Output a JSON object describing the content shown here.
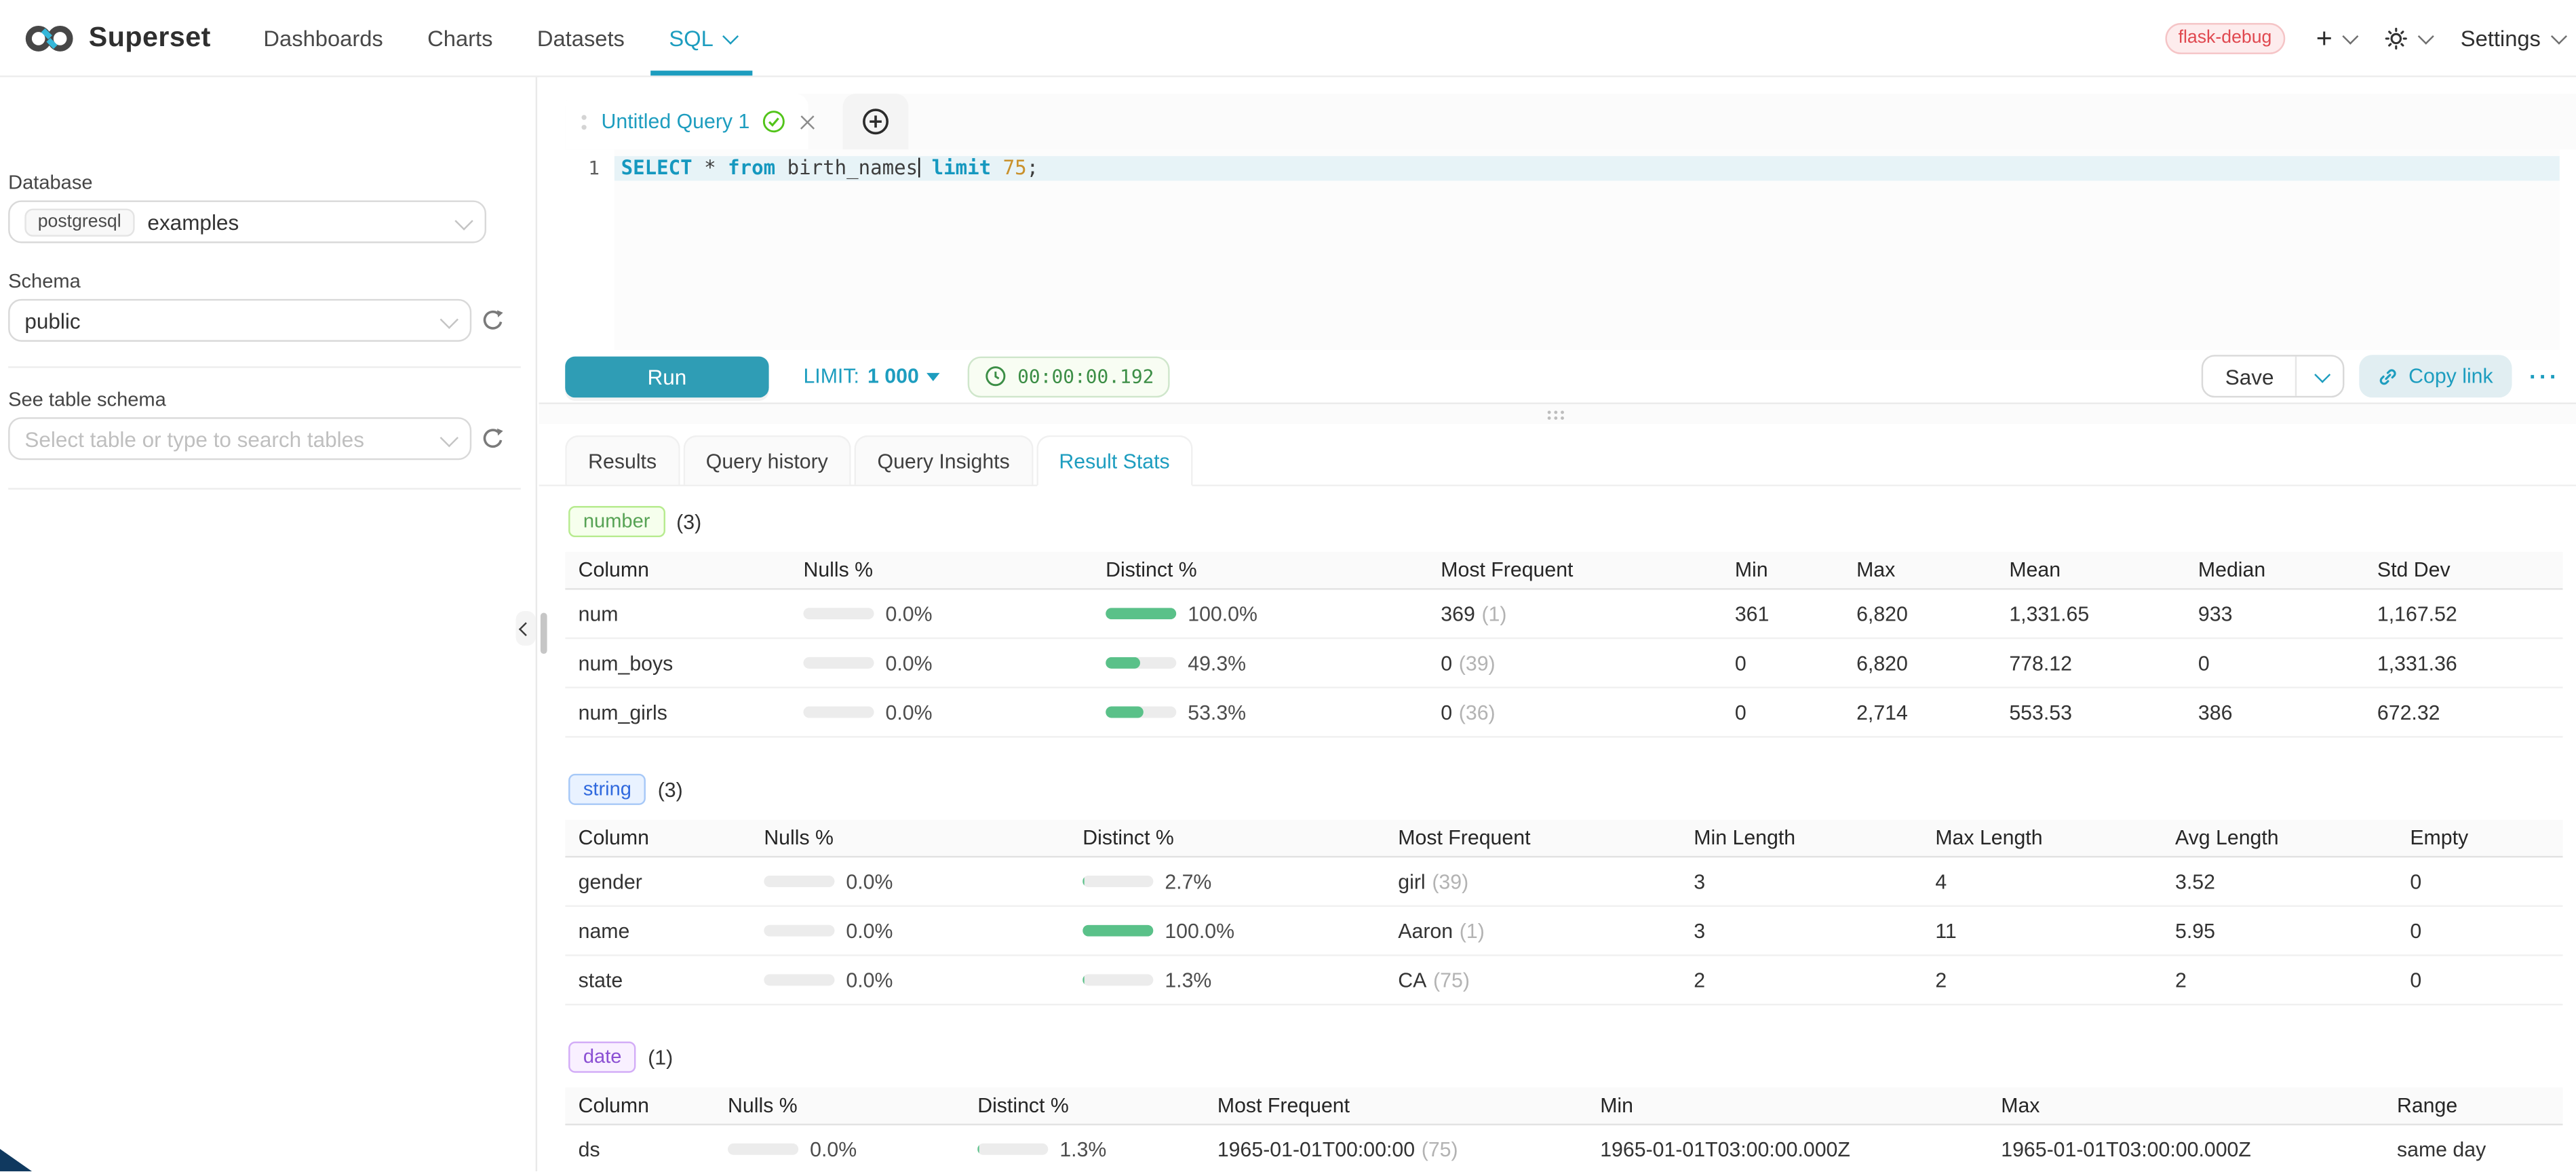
{
  "navbar": {
    "brand": "Superset",
    "items": [
      {
        "label": "Dashboards",
        "active": false,
        "has_caret": false
      },
      {
        "label": "Charts",
        "active": false,
        "has_caret": false
      },
      {
        "label": "Datasets",
        "active": false,
        "has_caret": false
      },
      {
        "label": "SQL",
        "active": true,
        "has_caret": true
      }
    ],
    "environment_tag": "flask-debug",
    "settings": "Settings"
  },
  "sidebar": {
    "database_label": "Database",
    "database_engine": "postgresql",
    "database_name": "examples",
    "schema_label": "Schema",
    "schema_value": "public",
    "table_schema_label": "See table schema",
    "table_placeholder": "Select table or type to search tables"
  },
  "editor": {
    "tab_title": "Untitled Query 1",
    "line_number": "1",
    "sql": "SELECT * from birth_names limit 75;",
    "caret_after_token": 3,
    "tokens": [
      {
        "text": "SELECT",
        "type": "keyword"
      },
      {
        "text": " * ",
        "type": "plain"
      },
      {
        "text": "from",
        "type": "keyword"
      },
      {
        "text": " birth_names",
        "type": "plain"
      },
      {
        "text": " ",
        "type": "plain"
      },
      {
        "text": "limit",
        "type": "keyword"
      },
      {
        "text": " ",
        "type": "plain"
      },
      {
        "text": "75",
        "type": "number"
      },
      {
        "text": ";",
        "type": "plain"
      }
    ]
  },
  "toolbar": {
    "run": "Run",
    "limit_label": "LIMIT:",
    "limit_value": "1 000",
    "elapsed": "00:00:00.192",
    "save": "Save",
    "copy_link": "Copy link",
    "more": "···"
  },
  "results": {
    "tabs": [
      {
        "label": "Results",
        "active": false
      },
      {
        "label": "Query history",
        "active": false
      },
      {
        "label": "Query Insights",
        "active": false
      },
      {
        "label": "Result Stats",
        "active": true
      }
    ]
  },
  "stats_sections": [
    {
      "id": "number",
      "tag": "number",
      "count": "(3)",
      "colors": {
        "text": "#56a254",
        "bg": "#f6ffed",
        "border": "#b7eb8f"
      },
      "headers": [
        "Column",
        "Nulls %",
        "Distinct %",
        "Most Frequent",
        "Min",
        "Max",
        "Mean",
        "Median",
        "Std Dev"
      ],
      "rows": [
        {
          "column": "num",
          "nulls": {
            "pct": 0,
            "label": "0.0%"
          },
          "distinct": {
            "pct": 100,
            "label": "100.0%"
          },
          "most_frequent": {
            "value": "369",
            "count": "(1)"
          },
          "values": [
            "361",
            "6,820",
            "1,331.65",
            "933",
            "1,167.52"
          ]
        },
        {
          "column": "num_boys",
          "nulls": {
            "pct": 0,
            "label": "0.0%"
          },
          "distinct": {
            "pct": 49.3,
            "label": "49.3%"
          },
          "most_frequent": {
            "value": "0",
            "count": "(39)"
          },
          "values": [
            "0",
            "6,820",
            "778.12",
            "0",
            "1,331.36"
          ]
        },
        {
          "column": "num_girls",
          "nulls": {
            "pct": 0,
            "label": "0.0%"
          },
          "distinct": {
            "pct": 53.3,
            "label": "53.3%"
          },
          "most_frequent": {
            "value": "0",
            "count": "(36)"
          },
          "values": [
            "0",
            "2,714",
            "553.53",
            "386",
            "672.32"
          ]
        }
      ]
    },
    {
      "id": "string",
      "tag": "string",
      "count": "(3)",
      "colors": {
        "text": "#3069de",
        "bg": "#e9f2ff",
        "border": "#a6c8f7"
      },
      "headers": [
        "Column",
        "Nulls %",
        "Distinct %",
        "Most Frequent",
        "Min Length",
        "Max Length",
        "Avg Length",
        "Empty"
      ],
      "rows": [
        {
          "column": "gender",
          "nulls": {
            "pct": 0,
            "label": "0.0%"
          },
          "distinct": {
            "pct": 2.7,
            "label": "2.7%"
          },
          "most_frequent": {
            "value": "girl",
            "count": "(39)"
          },
          "values": [
            "3",
            "4",
            "3.52",
            "0"
          ]
        },
        {
          "column": "name",
          "nulls": {
            "pct": 0,
            "label": "0.0%"
          },
          "distinct": {
            "pct": 100,
            "label": "100.0%"
          },
          "most_frequent": {
            "value": "Aaron",
            "count": "(1)"
          },
          "values": [
            "3",
            "11",
            "5.95",
            "0"
          ]
        },
        {
          "column": "state",
          "nulls": {
            "pct": 0,
            "label": "0.0%"
          },
          "distinct": {
            "pct": 1.3,
            "label": "1.3%"
          },
          "most_frequent": {
            "value": "CA",
            "count": "(75)"
          },
          "values": [
            "2",
            "2",
            "2",
            "0"
          ]
        }
      ]
    },
    {
      "id": "date",
      "tag": "date",
      "count": "(1)",
      "colors": {
        "text": "#8a4fd3",
        "bg": "#f9f0ff",
        "border": "#d3adf7"
      },
      "headers": [
        "Column",
        "Nulls %",
        "Distinct %",
        "Most Frequent",
        "Min",
        "Max",
        "Range"
      ],
      "rows": [
        {
          "column": "ds",
          "nulls": {
            "pct": 0,
            "label": "0.0%"
          },
          "distinct": {
            "pct": 1.3,
            "label": "1.3%"
          },
          "most_frequent": {
            "value": "1965-01-01T00:00:00",
            "count": "(75)"
          },
          "values": [
            "1965-01-01T03:00:00.000Z",
            "1965-01-01T03:00:00.000Z",
            "same day"
          ]
        }
      ]
    }
  ]
}
